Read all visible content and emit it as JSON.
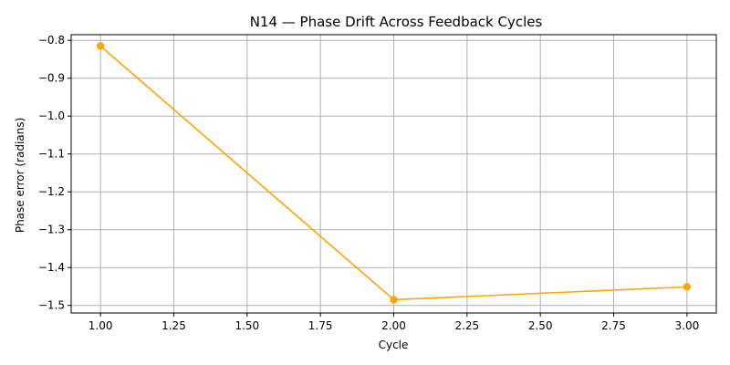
{
  "chart_data": {
    "type": "line",
    "title": "N14 — Phase Drift Across Feedback Cycles",
    "xlabel": "Cycle",
    "ylabel": "Phase error (radians)",
    "x": [
      1.0,
      2.0,
      3.0
    ],
    "series": [
      {
        "values": [
          -0.815,
          -1.485,
          -1.451
        ],
        "color": "#FFA500",
        "marker": "circle"
      }
    ],
    "xlim": [
      0.9,
      3.1
    ],
    "ylim": [
      -1.52,
      -0.785
    ],
    "x_ticks": [
      1.0,
      1.25,
      1.5,
      1.75,
      2.0,
      2.25,
      2.5,
      2.75,
      3.0
    ],
    "x_tick_labels": [
      "1.00",
      "1.25",
      "1.50",
      "1.75",
      "2.00",
      "2.25",
      "2.50",
      "2.75",
      "3.00"
    ],
    "y_ticks": [
      -0.8,
      -0.9,
      -1.0,
      -1.1,
      -1.2,
      -1.3,
      -1.4,
      -1.5
    ],
    "y_tick_labels": [
      "−0.8",
      "−0.9",
      "−1.0",
      "−1.1",
      "−1.2",
      "−1.3",
      "−1.4",
      "−1.5"
    ],
    "grid": true,
    "legend": false,
    "grid_color": "#B0B0B0",
    "line_color": "#FFA500"
  }
}
